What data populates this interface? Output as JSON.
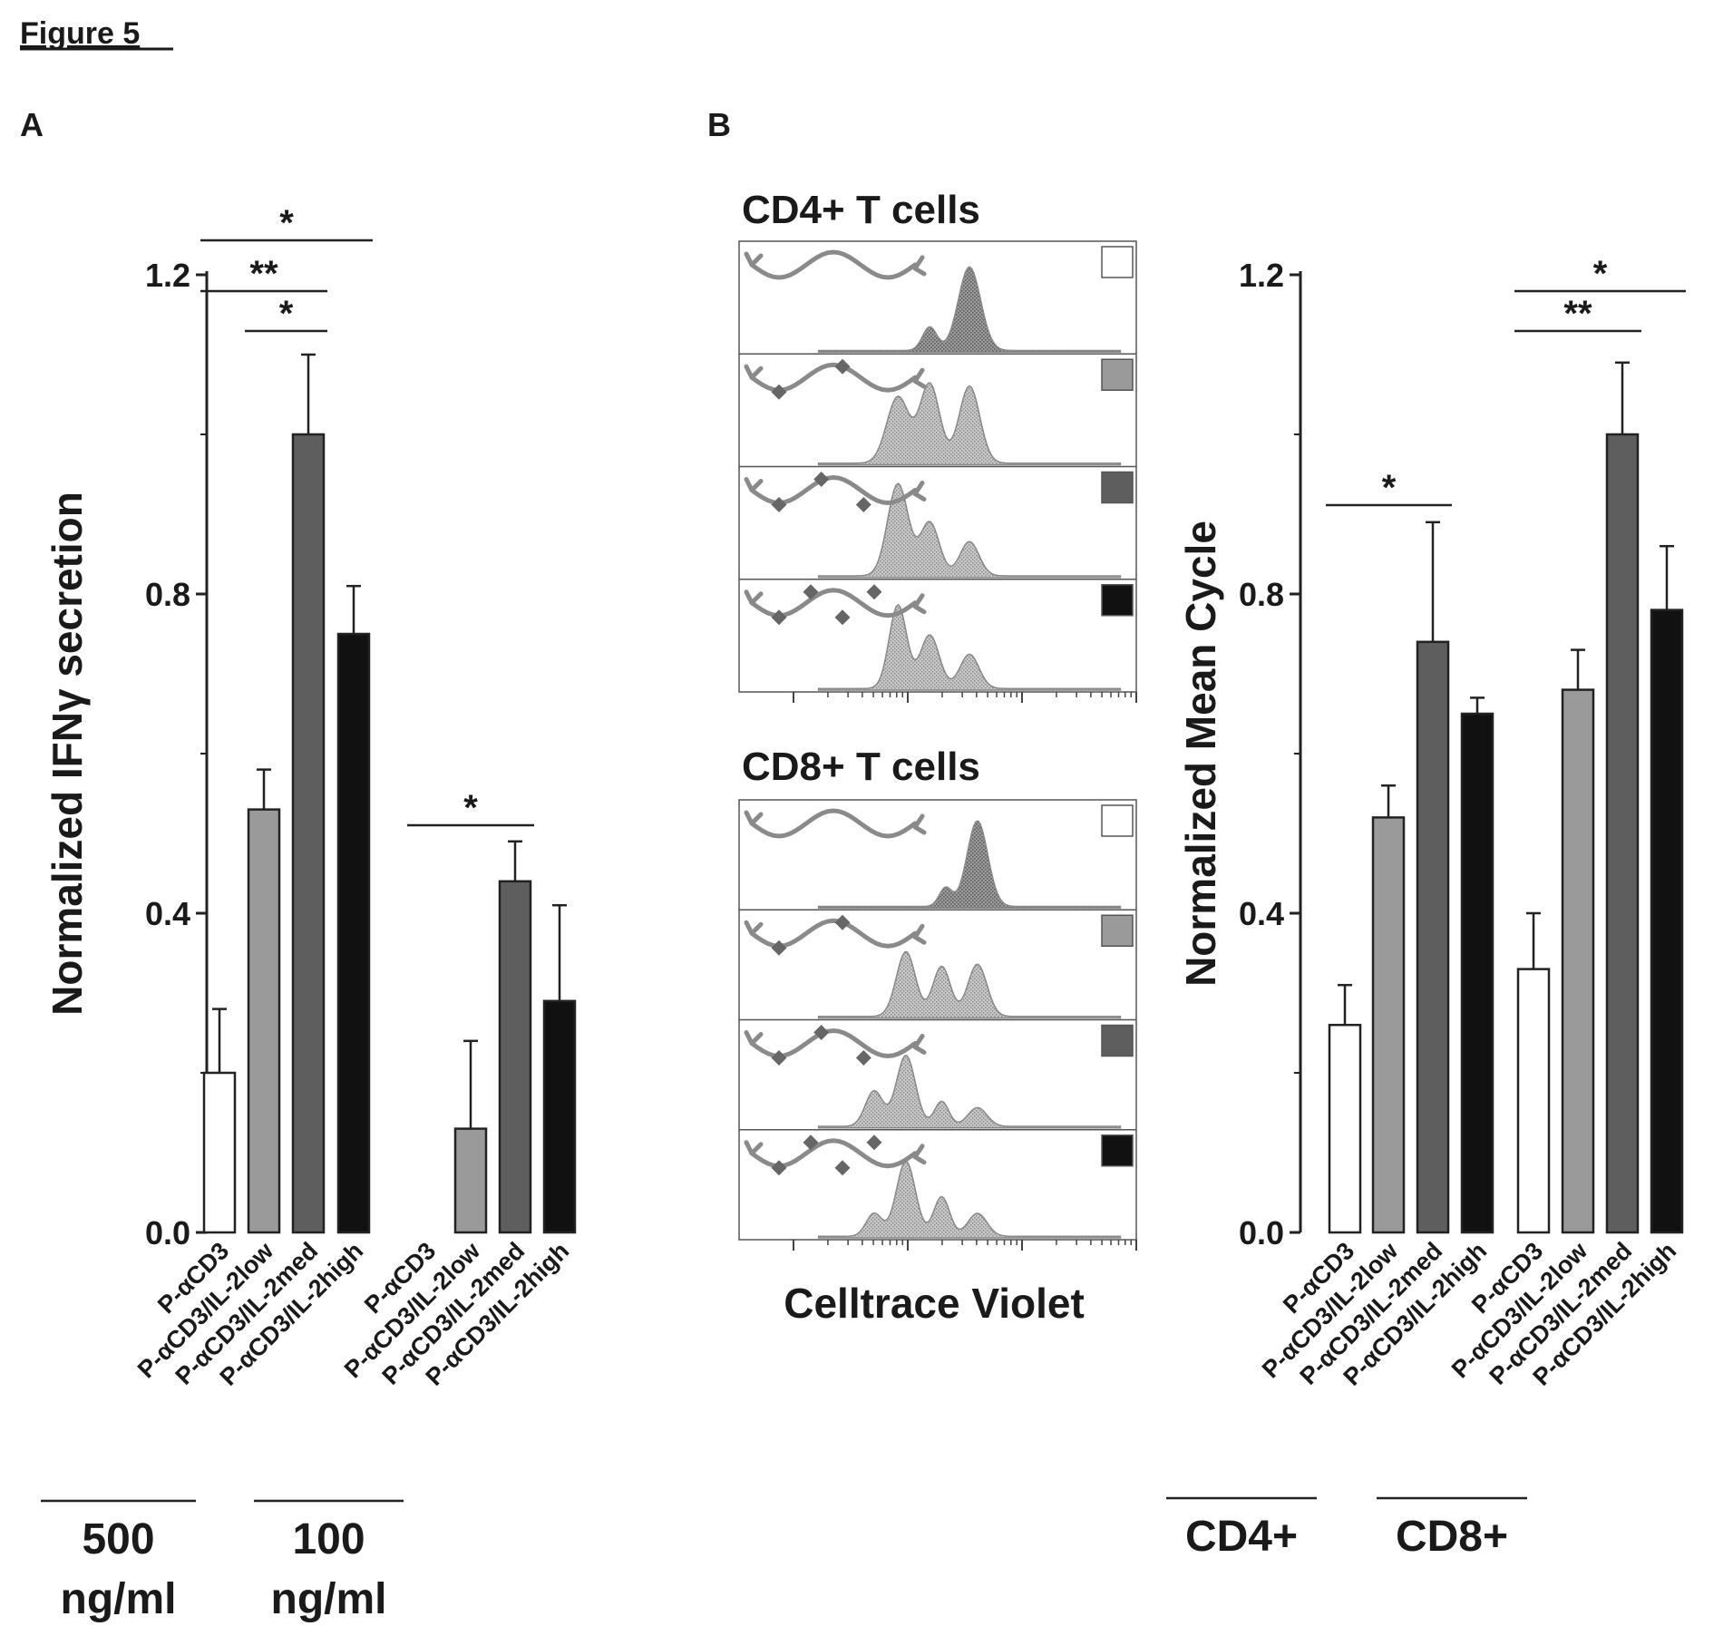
{
  "figure_title": "Figure 5",
  "panel_labels": {
    "a": "A",
    "b": "B"
  },
  "chart_data": [
    {
      "type": "bar",
      "panel": "A",
      "ylabel": "Normalized IFNγ secretion",
      "ylim": [
        0,
        1.2
      ],
      "yticks": [
        "0.0",
        "0.4",
        "0.8",
        "1.2"
      ],
      "categories": [
        "P-αCD3",
        "P-αCD3/IL-2low",
        "P-αCD3/IL-2med",
        "P-αCD3/IL-2high",
        "P-αCD3",
        "P-αCD3/IL-2low",
        "P-αCD3/IL-2med",
        "P-αCD3/IL-2high"
      ],
      "values": [
        0.2,
        0.53,
        1.0,
        0.75,
        0.0,
        0.13,
        0.44,
        0.29
      ],
      "errors": [
        0.08,
        0.05,
        0.1,
        0.06,
        0.0,
        0.11,
        0.05,
        0.12
      ],
      "colors": [
        "#ffffff",
        "#9a9a9a",
        "#5e5e5e",
        "#111111",
        "#ffffff",
        "#9a9a9a",
        "#5e5e5e",
        "#111111"
      ],
      "groups": [
        {
          "line1": "500",
          "line2": "ng/ml",
          "members": [
            0,
            1,
            2,
            3
          ]
        },
        {
          "line1": "100",
          "line2": "ng/ml",
          "members": [
            4,
            5,
            6,
            7
          ]
        }
      ],
      "significance": [
        {
          "from": 0,
          "to": 3,
          "label": "*"
        },
        {
          "from": 0,
          "to": 2,
          "label": "**"
        },
        {
          "from": 1,
          "to": 2,
          "label": "*"
        },
        {
          "from": 4,
          "to": 6,
          "label": "*"
        }
      ]
    },
    {
      "type": "bar",
      "panel": "B",
      "ylabel": "Normalized Mean Cycle",
      "ylim": [
        0,
        1.2
      ],
      "yticks": [
        "0.0",
        "0.4",
        "0.8",
        "1.2"
      ],
      "categories": [
        "P-αCD3",
        "P-αCD3/IL-2low",
        "P-αCD3/IL-2med",
        "P-αCD3/IL-2high",
        "P-αCD3",
        "P-αCD3/IL-2low",
        "P-αCD3/IL-2med",
        "P-αCD3/IL-2high"
      ],
      "values": [
        0.26,
        0.52,
        0.74,
        0.65,
        0.33,
        0.68,
        1.0,
        0.78
      ],
      "errors": [
        0.05,
        0.04,
        0.15,
        0.02,
        0.07,
        0.05,
        0.09,
        0.08
      ],
      "colors": [
        "#ffffff",
        "#9a9a9a",
        "#5e5e5e",
        "#111111",
        "#ffffff",
        "#9a9a9a",
        "#5e5e5e",
        "#111111"
      ],
      "groups": [
        {
          "line1": "CD4+",
          "members": [
            0,
            1,
            2,
            3
          ]
        },
        {
          "line1": "CD8+",
          "members": [
            4,
            5,
            6,
            7
          ]
        }
      ],
      "significance": [
        {
          "from": 0,
          "to": 2,
          "label": "*"
        },
        {
          "from": 4,
          "to": 7,
          "label": "*"
        },
        {
          "from": 4,
          "to": 6,
          "label": "**"
        }
      ]
    }
  ],
  "histograms": {
    "xlabel": "Celltrace Violet",
    "panels": [
      {
        "title": "CD4+ T cells",
        "swatch_colors": [
          "#ffffff",
          "#9a9a9a",
          "#5e5e5e",
          "#111111"
        ]
      },
      {
        "title": "CD8+ T cells",
        "swatch_colors": [
          "#ffffff",
          "#9a9a9a",
          "#5e5e5e",
          "#111111"
        ]
      }
    ]
  }
}
